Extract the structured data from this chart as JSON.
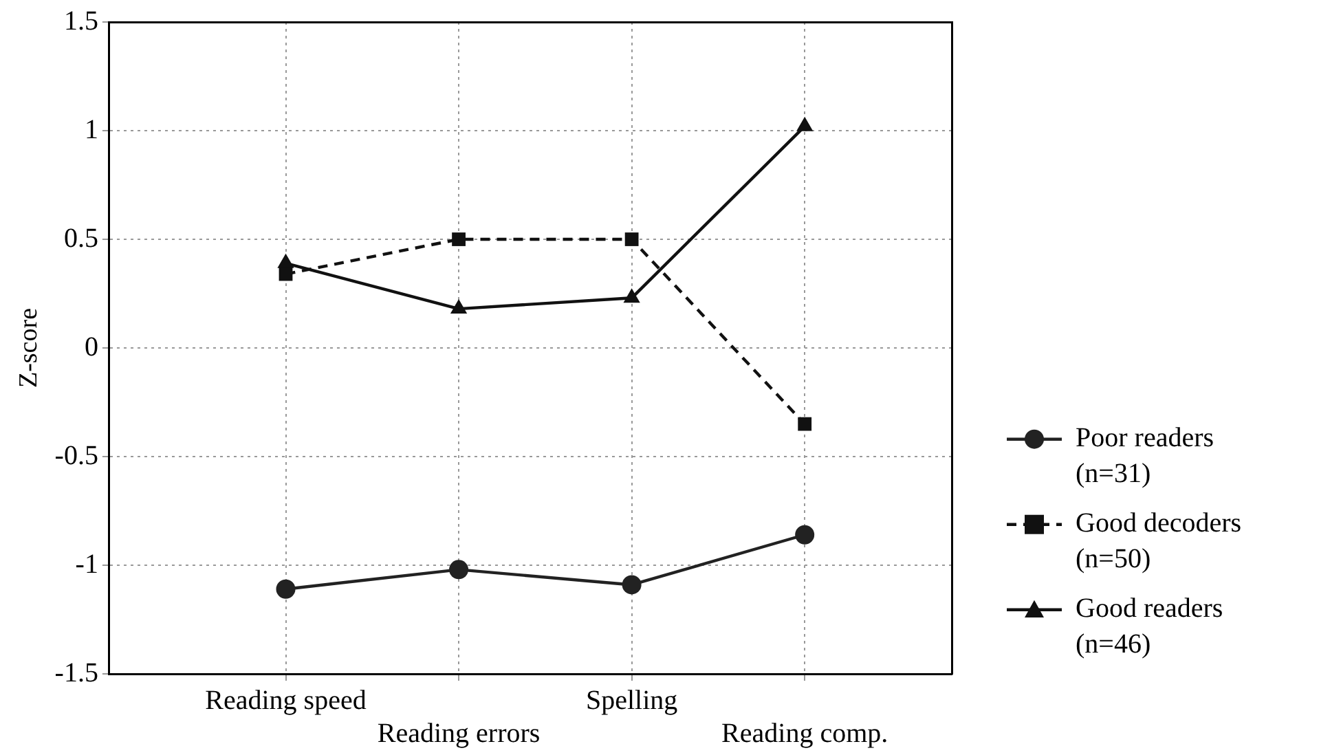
{
  "chart_data": {
    "type": "line",
    "ylabel": "Z-score",
    "categories": [
      "Reading speed",
      "Reading errors",
      "Spelling",
      "Reading comp."
    ],
    "ylim": [
      -1.5,
      1.5
    ],
    "yticks": [
      {
        "value": -1.5,
        "label": "-1.5"
      },
      {
        "value": -1,
        "label": "-1"
      },
      {
        "value": -0.5,
        "label": "-0.5"
      },
      0,
      0.5,
      1,
      1.5
    ],
    "grid": true,
    "legend": "right",
    "series": [
      {
        "name": "Poor readers (n=31)",
        "color": "#222222",
        "values": [
          -1.11,
          -1.02,
          -1.09,
          -0.86
        ],
        "marker": "circle",
        "line_style": "solid"
      },
      {
        "name": "Good decoders (n=50)",
        "color": "#111111",
        "values": [
          0.34,
          0.5,
          0.5,
          -0.35
        ],
        "marker": "square",
        "line_style": "dashed"
      },
      {
        "name": "Good readers (n=46)",
        "color": "#111111",
        "values": [
          0.39,
          0.18,
          0.23,
          1.02
        ],
        "marker": "triangle",
        "line_style": "solid"
      }
    ]
  }
}
